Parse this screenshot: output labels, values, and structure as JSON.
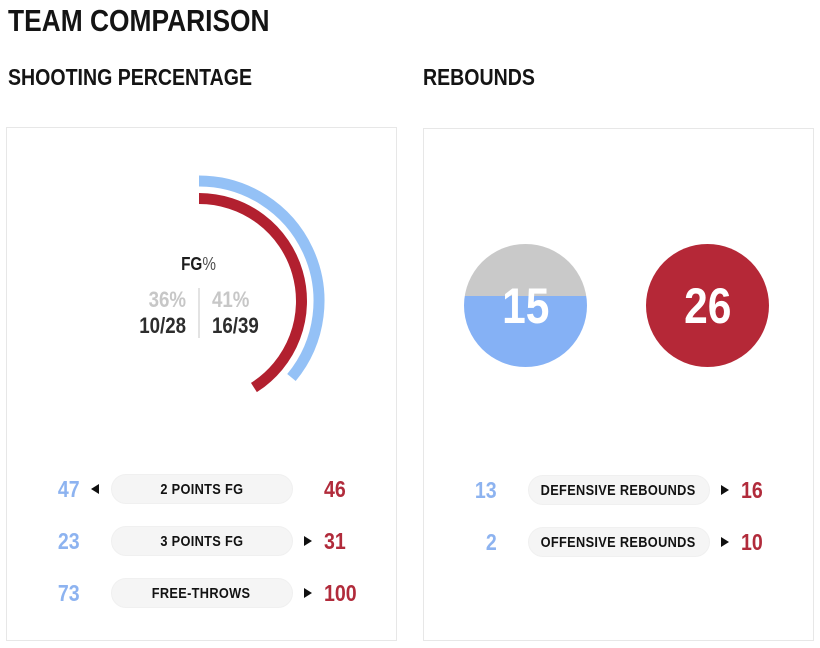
{
  "page": {
    "title": "TEAM COMPARISON"
  },
  "colors": {
    "team_blue": "#8db3f0",
    "team_red": "#b12b3b",
    "arc_blue": "#94c1f6",
    "arc_red": "#b2202f",
    "circle_blue": "#85b1f5",
    "circle_red": "#b52837",
    "gray_fill": "#c9c9c9",
    "muted_value_text": "#c7c7c7"
  },
  "shooting": {
    "section_title": "SHOOTING PERCENTAGE",
    "gauge": {
      "metric_label": "FG",
      "percent_sign": "%",
      "left": {
        "pct": "36%",
        "made_attempted": "10/28"
      },
      "right": {
        "pct": "41%",
        "made_attempted": "16/39"
      }
    },
    "rows": [
      {
        "left": "47",
        "label": "2 POINTS FG",
        "right": "46",
        "winner": "left"
      },
      {
        "left": "23",
        "label": "3 POINTS FG",
        "right": "31",
        "winner": "right"
      },
      {
        "left": "73",
        "label": "FREE-THROWS",
        "right": "100",
        "winner": "right"
      }
    ]
  },
  "rebounds": {
    "section_title": "REBOUNDS",
    "circles": {
      "left": {
        "value": 15
      },
      "right": {
        "value": 26
      }
    },
    "rows": [
      {
        "left": "13",
        "label": "DEFENSIVE REBOUNDS",
        "right": "16",
        "winner": "right"
      },
      {
        "left": "2",
        "label": "OFFENSIVE REBOUNDS",
        "right": "10",
        "winner": "right"
      }
    ]
  },
  "chart_data": [
    {
      "type": "gauge",
      "title": "FG%",
      "start_angle_deg": 0,
      "direction": "clockwise",
      "scale_full_circle": 100,
      "series": [
        {
          "name": "team-blue",
          "pct": 36,
          "made": 10,
          "attempted": 28,
          "ring": "outer"
        },
        {
          "name": "team-red",
          "pct": 41,
          "made": 16,
          "attempted": 39,
          "ring": "inner"
        }
      ]
    },
    {
      "type": "pie",
      "title": "TOTAL REBOUNDS",
      "categories": [
        "team-blue",
        "team-red"
      ],
      "values": [
        15,
        26
      ],
      "note": "two filled circles; blue circle filled 15/26 from bottom (rest gray), red circle fully filled"
    },
    {
      "type": "table",
      "title": "SHOOTING PERCENTAGE",
      "categories": [
        "2 POINTS FG",
        "3 POINTS FG",
        "FREE-THROWS"
      ],
      "series": [
        {
          "name": "team-blue",
          "values": [
            47,
            23,
            73
          ]
        },
        {
          "name": "team-red",
          "values": [
            46,
            31,
            100
          ]
        }
      ]
    },
    {
      "type": "table",
      "title": "REBOUNDS",
      "categories": [
        "DEFENSIVE REBOUNDS",
        "OFFENSIVE REBOUNDS"
      ],
      "series": [
        {
          "name": "team-blue",
          "values": [
            13,
            2
          ]
        },
        {
          "name": "team-red",
          "values": [
            16,
            10
          ]
        }
      ]
    }
  ]
}
